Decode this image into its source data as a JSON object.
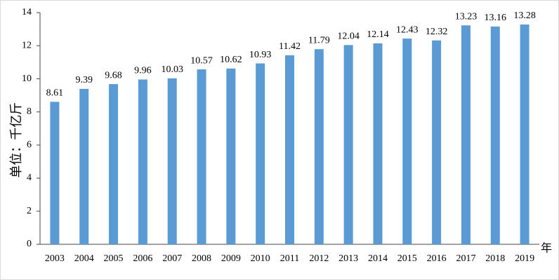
{
  "chart_data": {
    "type": "bar",
    "y_label": "单位：千亿斤",
    "x_label": "年",
    "categories": [
      "2003",
      "2004",
      "2005",
      "2006",
      "2007",
      "2008",
      "2009",
      "2010",
      "2011",
      "2012",
      "2013",
      "2014",
      "2015",
      "2016",
      "2017",
      "2018",
      "2019"
    ],
    "values": [
      8.61,
      9.39,
      9.68,
      9.96,
      10.03,
      10.57,
      10.62,
      10.93,
      11.42,
      11.79,
      12.04,
      12.14,
      12.43,
      12.32,
      13.23,
      13.16,
      13.28
    ],
    "color": "#5b9bd5",
    "ylim": [
      0,
      14
    ],
    "yticks": [
      0,
      2,
      4,
      6,
      8,
      10,
      12,
      14
    ],
    "grid": false
  }
}
